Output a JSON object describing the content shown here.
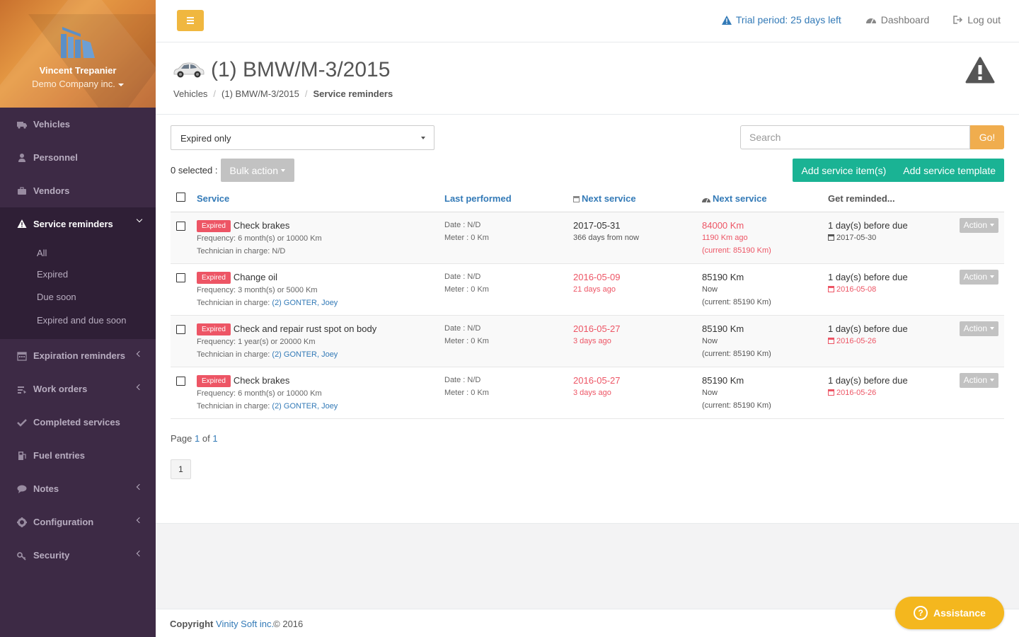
{
  "profile": {
    "name": "Vincent Trepanier",
    "company": "Demo Company inc."
  },
  "sidebar": {
    "items": [
      {
        "label": "Vehicles",
        "icon": "truck-icon"
      },
      {
        "label": "Personnel",
        "icon": "user-icon"
      },
      {
        "label": "Vendors",
        "icon": "briefcase-icon"
      },
      {
        "label": "Service reminders",
        "icon": "warning-icon"
      },
      {
        "label": "Expiration reminders",
        "icon": "calendar-icon"
      },
      {
        "label": "Work orders",
        "icon": "wrench-icon"
      },
      {
        "label": "Completed services",
        "icon": "check-icon"
      },
      {
        "label": "Fuel entries",
        "icon": "fuel-icon"
      },
      {
        "label": "Notes",
        "icon": "comment-icon"
      },
      {
        "label": "Configuration",
        "icon": "gear-icon"
      },
      {
        "label": "Security",
        "icon": "key-icon"
      }
    ],
    "subitems": [
      "All",
      "Expired",
      "Due soon",
      "Expired and due soon"
    ]
  },
  "topbar": {
    "trial": "Trial period: 25 days left",
    "dashboard": "Dashboard",
    "logout": "Log out"
  },
  "page": {
    "title": "(1) BMW/M-3/2015",
    "breadcrumb": [
      "Vehicles",
      "(1) BMW/M-3/2015",
      "Service reminders"
    ]
  },
  "filter": {
    "selected": "Expired only"
  },
  "search": {
    "placeholder": "Search",
    "go": "Go!"
  },
  "bulk": {
    "selected": "0 selected :",
    "label": "Bulk action"
  },
  "buttons": {
    "add_item": "Add service item(s)",
    "add_template": "Add service template"
  },
  "table": {
    "headers": {
      "service": "Service",
      "last": "Last performed",
      "next_date": "Next service",
      "next_meter": "Next service",
      "reminded": "Get reminded..."
    },
    "rows": [
      {
        "badge": "Expired",
        "service": "Check brakes",
        "freq_label": "Frequency:",
        "freq": "6 month(s) or 10000 Km",
        "tech_label": "Technician in charge:",
        "tech": "N/D",
        "last_date": "Date : N/D",
        "last_meter": "Meter : 0 Km",
        "next_date": "2017-05-31",
        "next_date_sub": "366 days from now",
        "next_meter": "84000 Km",
        "next_meter_sub": "1190 Km ago",
        "current": "(current: 85190 Km)",
        "reminded": "1 day(s) before due",
        "reminded_date": "2017-05-30",
        "action": "Action"
      },
      {
        "badge": "Expired",
        "service": "Change oil",
        "freq_label": "Frequency:",
        "freq": "3 month(s) or 5000 Km",
        "tech_label": "Technician in charge:",
        "tech": "(2) GONTER, Joey",
        "last_date": "Date : N/D",
        "last_meter": "Meter : 0 Km",
        "next_date": "2016-05-09",
        "next_date_sub": "21 days ago",
        "next_meter": "85190 Km",
        "next_meter_sub": "Now",
        "current": "(current: 85190 Km)",
        "reminded": "1 day(s) before due",
        "reminded_date": "2016-05-08",
        "action": "Action"
      },
      {
        "badge": "Expired",
        "service": "Check and repair rust spot on body",
        "freq_label": "Frequency:",
        "freq": "1 year(s) or 20000 Km",
        "tech_label": "Technician in charge:",
        "tech": "(2) GONTER, Joey",
        "last_date": "Date : N/D",
        "last_meter": "Meter : 0 Km",
        "next_date": "2016-05-27",
        "next_date_sub": "3 days ago",
        "next_meter": "85190 Km",
        "next_meter_sub": "Now",
        "current": "(current: 85190 Km)",
        "reminded": "1 day(s) before due",
        "reminded_date": "2016-05-26",
        "action": "Action"
      },
      {
        "badge": "Expired",
        "service": "Check brakes",
        "freq_label": "Frequency:",
        "freq": "6 month(s) or 10000 Km",
        "tech_label": "Technician in charge:",
        "tech": "(2) GONTER, Joey",
        "last_date": "Date : N/D",
        "last_meter": "Meter : 0 Km",
        "next_date": "2016-05-27",
        "next_date_sub": "3 days ago",
        "next_meter": "85190 Km",
        "next_meter_sub": "Now",
        "current": "(current: 85190 Km)",
        "reminded": "1 day(s) before due",
        "reminded_date": "2016-05-26",
        "action": "Action"
      }
    ]
  },
  "pagination": {
    "page_word": "Page",
    "current": "1",
    "of_word": "of",
    "total": "1",
    "button": "1"
  },
  "footer": {
    "copyright": "Copyright",
    "company": "Vinity Soft inc.",
    "year": "© 2016"
  },
  "assistance": {
    "label": "Assistance"
  },
  "colors": {
    "accent": "#f0b73f",
    "green": "#1ab394",
    "red": "#ed5565",
    "link": "#337ab7",
    "sidebar": "#3d2a45"
  }
}
